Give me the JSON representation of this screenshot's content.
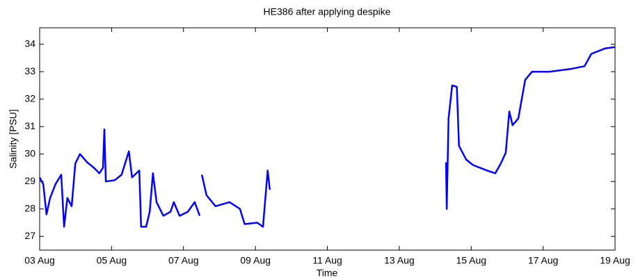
{
  "chart_data": {
    "type": "line",
    "title": "HE386 after applying despike",
    "x_label": "Time",
    "y_label": "Salinity [PSU]",
    "xlim": [
      3,
      19
    ],
    "xticks": [
      {
        "value": 3,
        "label": "03 Aug"
      },
      {
        "value": 5,
        "label": "05 Aug"
      },
      {
        "value": 7,
        "label": "07 Aug"
      },
      {
        "value": 9,
        "label": "09 Aug"
      },
      {
        "value": 11,
        "label": "11 Aug"
      },
      {
        "value": 13,
        "label": "13 Aug"
      },
      {
        "value": 15,
        "label": "15 Aug"
      },
      {
        "value": 17,
        "label": "17 Aug"
      },
      {
        "value": 19,
        "label": "19 Aug"
      }
    ],
    "ylim": [
      26.5,
      34.6
    ],
    "yticks": [
      27,
      28,
      29,
      30,
      31,
      32,
      33,
      34
    ],
    "grid": false,
    "series": [
      {
        "name": "Salinity",
        "color": "#0000ff",
        "x": [
          3.0,
          3.1,
          3.19,
          3.29,
          3.44,
          3.6,
          3.68,
          3.77,
          3.89,
          3.99,
          4.12,
          4.32,
          4.51,
          4.66,
          4.76,
          4.8,
          4.84,
          5.09,
          5.28,
          5.48,
          5.57,
          5.77,
          5.82,
          5.96,
          6.06,
          6.15,
          6.25,
          6.44,
          6.64,
          6.73,
          6.89,
          7.12,
          7.31,
          7.45,
          null,
          7.51,
          7.64,
          7.89,
          8.28,
          8.57,
          8.7,
          9.05,
          9.21,
          9.34,
          9.4,
          null,
          14.3,
          14.32,
          14.37,
          14.47,
          14.6,
          14.66,
          14.86,
          15.05,
          15.44,
          15.67,
          15.82,
          15.96,
          16.06,
          16.15,
          16.31,
          16.5,
          16.69,
          17.18,
          17.76,
          18.15,
          18.34,
          18.73,
          19.0
        ],
        "values": [
          29.15,
          28.9,
          27.8,
          28.4,
          28.9,
          29.25,
          27.35,
          28.4,
          28.1,
          29.65,
          30.0,
          29.7,
          29.5,
          29.3,
          29.5,
          30.9,
          29.0,
          29.05,
          29.25,
          30.1,
          29.15,
          29.4,
          27.35,
          27.35,
          27.9,
          29.3,
          28.25,
          27.75,
          27.9,
          28.25,
          27.75,
          27.9,
          28.25,
          27.75,
          null,
          29.25,
          28.5,
          28.1,
          28.25,
          28.0,
          27.45,
          27.5,
          27.35,
          29.4,
          28.7,
          null,
          29.7,
          28.0,
          31.3,
          32.5,
          32.45,
          30.3,
          29.8,
          29.6,
          29.4,
          29.3,
          29.65,
          30.05,
          31.55,
          31.05,
          31.3,
          32.7,
          33.0,
          33.0,
          33.1,
          33.2,
          33.65,
          33.85,
          33.9
        ]
      }
    ]
  }
}
